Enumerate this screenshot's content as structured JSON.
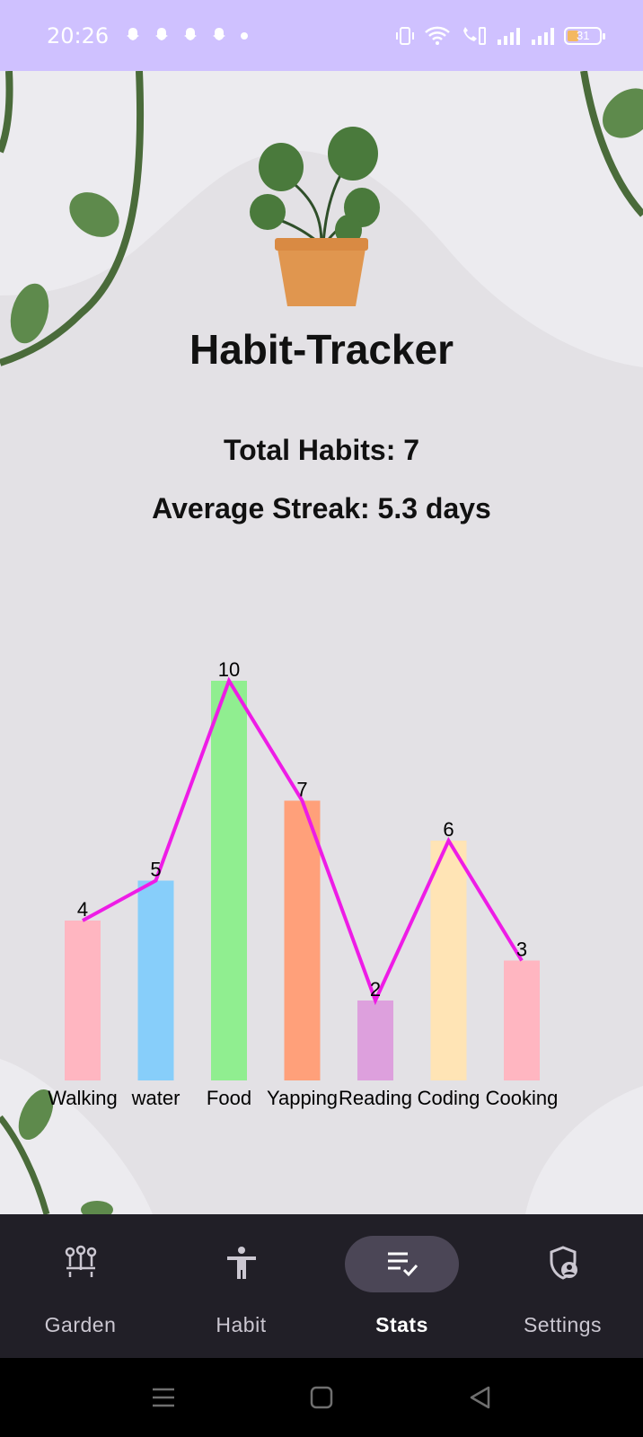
{
  "status_bar": {
    "time": "20:26",
    "battery": "31",
    "left_icons": [
      "snapchat-icon",
      "snapchat-icon",
      "snapchat-icon",
      "snapchat-icon",
      "dot-icon"
    ],
    "right_icons": [
      "vibrate-icon",
      "wifi-icon",
      "wifi-call-icon",
      "signal-icon",
      "signal-icon",
      "battery-icon"
    ]
  },
  "header": {
    "logo_icon": "potted-plant-icon",
    "title": "Habit-Tracker"
  },
  "stats": {
    "total_habits": "Total Habits: 7",
    "average_streak": "Average Streak: 5.3 days"
  },
  "chart_data": {
    "type": "bar",
    "categories": [
      "Walking",
      "water",
      "Food",
      "Yapping",
      "Reading",
      "Coding",
      "Cooking"
    ],
    "values": [
      4,
      5,
      10,
      7,
      2,
      6,
      3
    ],
    "value_labels": [
      "4",
      "5",
      "10",
      "7",
      "2",
      "6",
      "3"
    ],
    "bar_colors": [
      "#ffb6c1",
      "#87cefa",
      "#90ee90",
      "#ffa07a",
      "#dda0dd",
      "#ffe4b5",
      "#ffb6c1"
    ],
    "line_color": "#ee1ce6",
    "overlay_line": true,
    "ylim": [
      0,
      10
    ],
    "title": "",
    "xlabel": "",
    "ylabel": ""
  },
  "nav": {
    "items": [
      {
        "label": "Garden",
        "icon": "garden-icon",
        "active": false
      },
      {
        "label": "Habit",
        "icon": "person-icon",
        "active": false
      },
      {
        "label": "Stats",
        "icon": "stats-checklist-icon",
        "active": true
      },
      {
        "label": "Settings",
        "icon": "shield-user-icon",
        "active": false
      }
    ]
  },
  "system_nav": {
    "icons": [
      "menu-icon",
      "home-icon",
      "back-icon"
    ]
  },
  "colors": {
    "status_bar": "#cfc1ff",
    "background": "#e3e1e5",
    "nav_background": "#211f27",
    "nav_active_pill": "#4b4656",
    "leaf_green": "#4a6b3a"
  }
}
